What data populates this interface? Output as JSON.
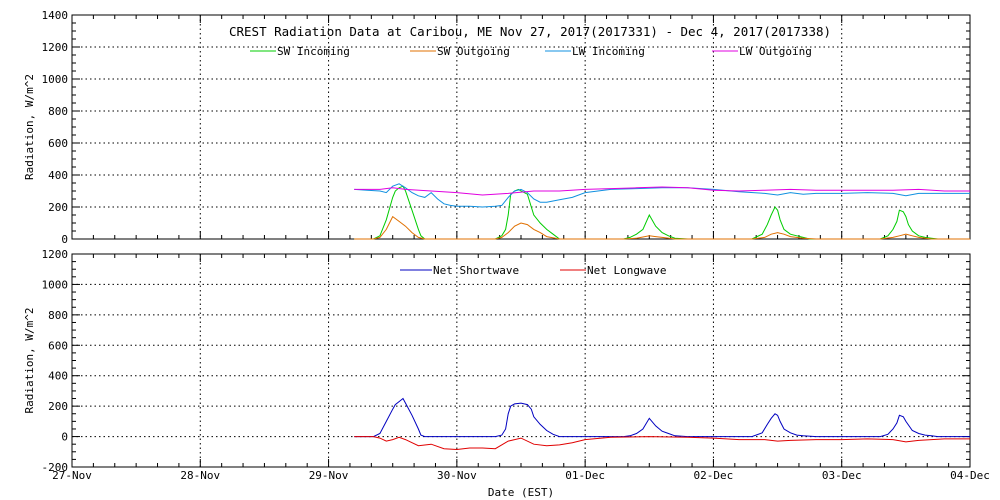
{
  "chart_data": [
    {
      "type": "line",
      "title": "CREST Radiation Data at Caribou, ME   Nov 27, 2017(2017331) - Dec  4, 2017(2017338)",
      "ylabel": "Radiation, W/m^2",
      "ylim": [
        0,
        1400
      ],
      "yticks": [
        0,
        200,
        400,
        600,
        800,
        1000,
        1200,
        1400
      ],
      "xlim": [
        0,
        7
      ],
      "grid": true,
      "legend_position": "top-center",
      "series": [
        {
          "name": "SW Incoming",
          "color": "#00cc00",
          "x": [
            2.2,
            2.35,
            2.4,
            2.45,
            2.5,
            2.52,
            2.55,
            2.58,
            2.6,
            2.65,
            2.7,
            2.72,
            2.75,
            2.8,
            2.85,
            2.9,
            2.95,
            3.0,
            3.1,
            3.2,
            3.3,
            3.35,
            3.38,
            3.4,
            3.42,
            3.45,
            3.48,
            3.5,
            3.55,
            3.58,
            3.6,
            3.65,
            3.7,
            3.75,
            3.8,
            3.9,
            4.0,
            4.3,
            4.35,
            4.4,
            4.45,
            4.5,
            4.55,
            4.6,
            4.65,
            4.7,
            4.8,
            5.0,
            5.3,
            5.38,
            5.42,
            5.45,
            5.48,
            5.5,
            5.52,
            5.55,
            5.6,
            5.65,
            5.7,
            5.75,
            5.8,
            6.0,
            6.3,
            6.36,
            6.4,
            6.43,
            6.45,
            6.48,
            6.5,
            6.52,
            6.55,
            6.6,
            6.65,
            6.7,
            6.75,
            7.0
          ],
          "values": [
            0,
            0,
            20,
            120,
            260,
            300,
            320,
            330,
            300,
            180,
            60,
            20,
            0,
            0,
            0,
            0,
            0,
            0,
            0,
            0,
            0,
            20,
            60,
            150,
            280,
            300,
            310,
            300,
            280,
            200,
            150,
            100,
            60,
            30,
            0,
            0,
            0,
            0,
            10,
            30,
            60,
            150,
            80,
            40,
            20,
            5,
            0,
            0,
            0,
            30,
            90,
            150,
            200,
            180,
            120,
            60,
            30,
            20,
            10,
            0,
            0,
            0,
            0,
            20,
            60,
            110,
            180,
            170,
            140,
            90,
            50,
            20,
            10,
            5,
            0,
            0
          ]
        },
        {
          "name": "SW Outgoing",
          "color": "#e07000",
          "x": [
            2.2,
            2.35,
            2.4,
            2.45,
            2.5,
            2.55,
            2.6,
            2.65,
            2.7,
            2.75,
            2.8,
            3.3,
            3.35,
            3.4,
            3.45,
            3.5,
            3.55,
            3.6,
            3.65,
            3.7,
            3.8,
            4.3,
            4.4,
            4.5,
            4.55,
            4.6,
            4.7,
            4.8,
            5.3,
            5.4,
            5.45,
            5.5,
            5.55,
            5.6,
            5.7,
            5.8,
            6.3,
            6.4,
            6.45,
            6.5,
            6.55,
            6.6,
            6.7,
            7.0
          ],
          "values": [
            0,
            0,
            10,
            60,
            140,
            110,
            80,
            40,
            10,
            0,
            0,
            0,
            10,
            40,
            80,
            100,
            90,
            60,
            40,
            15,
            0,
            0,
            5,
            20,
            15,
            10,
            0,
            0,
            0,
            10,
            30,
            40,
            30,
            15,
            5,
            0,
            0,
            10,
            20,
            30,
            20,
            10,
            0,
            0
          ]
        },
        {
          "name": "LW Incoming",
          "color": "#1090e0",
          "x": [
            2.2,
            2.3,
            2.4,
            2.45,
            2.5,
            2.55,
            2.6,
            2.65,
            2.7,
            2.75,
            2.8,
            2.85,
            2.9,
            2.95,
            3.0,
            3.1,
            3.2,
            3.3,
            3.35,
            3.4,
            3.45,
            3.5,
            3.55,
            3.6,
            3.65,
            3.7,
            3.8,
            3.9,
            4.0,
            4.2,
            4.4,
            4.6,
            4.8,
            5.0,
            5.2,
            5.4,
            5.5,
            5.6,
            5.7,
            5.8,
            6.0,
            6.2,
            6.4,
            6.5,
            6.6,
            6.8,
            7.0
          ],
          "values": [
            310,
            305,
            300,
            290,
            330,
            345,
            320,
            290,
            270,
            260,
            290,
            250,
            220,
            210,
            205,
            205,
            200,
            205,
            210,
            260,
            300,
            310,
            290,
            250,
            230,
            230,
            245,
            260,
            290,
            310,
            315,
            320,
            320,
            310,
            295,
            285,
            275,
            290,
            280,
            285,
            285,
            290,
            285,
            270,
            285,
            285,
            285
          ]
        },
        {
          "name": "LW Outgoing",
          "color": "#e000e0",
          "x": [
            2.2,
            2.4,
            2.5,
            2.6,
            2.8,
            3.0,
            3.2,
            3.4,
            3.6,
            3.8,
            4.0,
            4.2,
            4.4,
            4.6,
            4.8,
            5.0,
            5.2,
            5.4,
            5.6,
            5.8,
            6.0,
            6.2,
            6.4,
            6.6,
            6.8,
            7.0
          ],
          "values": [
            310,
            310,
            320,
            310,
            300,
            290,
            275,
            285,
            300,
            300,
            310,
            315,
            320,
            325,
            320,
            305,
            300,
            305,
            310,
            305,
            305,
            305,
            305,
            310,
            300,
            300
          ]
        }
      ]
    },
    {
      "type": "line",
      "ylabel": "Radiation, W/m^2",
      "xlabel": "Date (EST)",
      "ylim": [
        -200,
        1200
      ],
      "yticks": [
        -200,
        0,
        200,
        400,
        600,
        800,
        1000,
        1200
      ],
      "xlim": [
        0,
        7
      ],
      "categories": [
        "27-Nov",
        "28-Nov",
        "29-Nov",
        "30-Nov",
        "01-Dec",
        "02-Dec",
        "03-Dec",
        "04-Dec"
      ],
      "grid": true,
      "legend_position": "top-center",
      "series": [
        {
          "name": "Net Shortwave",
          "color": "#0000c0",
          "x": [
            2.2,
            2.35,
            2.4,
            2.45,
            2.5,
            2.52,
            2.55,
            2.58,
            2.6,
            2.65,
            2.7,
            2.72,
            2.75,
            2.8,
            3.0,
            3.2,
            3.3,
            3.35,
            3.38,
            3.4,
            3.42,
            3.45,
            3.5,
            3.55,
            3.58,
            3.6,
            3.65,
            3.7,
            3.75,
            3.8,
            4.0,
            4.3,
            4.35,
            4.4,
            4.45,
            4.5,
            4.55,
            4.6,
            4.65,
            4.7,
            4.8,
            5.0,
            5.3,
            5.38,
            5.42,
            5.45,
            5.48,
            5.5,
            5.52,
            5.55,
            5.6,
            5.65,
            5.7,
            5.8,
            6.0,
            6.3,
            6.36,
            6.4,
            6.43,
            6.45,
            6.48,
            6.5,
            6.55,
            6.6,
            6.65,
            6.7,
            6.75,
            7.0
          ],
          "values": [
            0,
            0,
            20,
            100,
            180,
            210,
            230,
            250,
            220,
            140,
            50,
            10,
            0,
            0,
            0,
            0,
            0,
            10,
            50,
            150,
            200,
            215,
            220,
            210,
            180,
            130,
            80,
            40,
            15,
            0,
            0,
            0,
            5,
            20,
            50,
            120,
            70,
            35,
            20,
            5,
            0,
            0,
            0,
            25,
            80,
            120,
            150,
            140,
            100,
            50,
            25,
            10,
            5,
            0,
            0,
            0,
            15,
            50,
            90,
            140,
            130,
            100,
            40,
            20,
            10,
            5,
            0,
            0
          ]
        },
        {
          "name": "Net Longwave",
          "color": "#e00000",
          "x": [
            2.2,
            2.35,
            2.4,
            2.45,
            2.5,
            2.55,
            2.6,
            2.65,
            2.7,
            2.8,
            2.9,
            3.0,
            3.1,
            3.2,
            3.3,
            3.4,
            3.5,
            3.6,
            3.7,
            3.8,
            3.9,
            4.0,
            4.2,
            4.5,
            4.8,
            5.0,
            5.2,
            5.4,
            5.5,
            5.6,
            5.8,
            6.0,
            6.2,
            6.4,
            6.5,
            6.6,
            6.8,
            7.0
          ],
          "values": [
            0,
            0,
            -10,
            -30,
            -20,
            -5,
            -20,
            -40,
            -60,
            -50,
            -80,
            -85,
            -75,
            -75,
            -80,
            -30,
            -10,
            -50,
            -60,
            -55,
            -40,
            -20,
            -5,
            0,
            -5,
            -10,
            -20,
            -20,
            -30,
            -25,
            -20,
            -20,
            -15,
            -20,
            -35,
            -25,
            -15,
            -15
          ]
        }
      ]
    }
  ]
}
